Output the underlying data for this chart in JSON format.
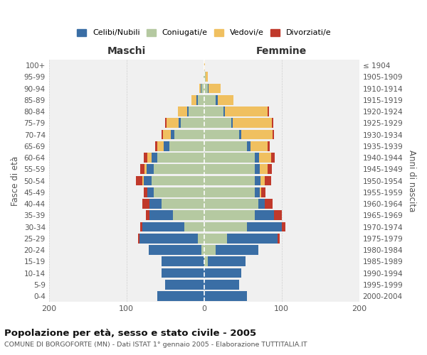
{
  "age_groups": [
    "0-4",
    "5-9",
    "10-14",
    "15-19",
    "20-24",
    "25-29",
    "30-34",
    "35-39",
    "40-44",
    "45-49",
    "50-54",
    "55-59",
    "60-64",
    "65-69",
    "70-74",
    "75-79",
    "80-84",
    "85-89",
    "90-94",
    "95-99",
    "100+"
  ],
  "birth_years": [
    "2000-2004",
    "1995-1999",
    "1990-1994",
    "1985-1989",
    "1980-1984",
    "1975-1979",
    "1970-1974",
    "1965-1969",
    "1960-1964",
    "1955-1959",
    "1950-1954",
    "1945-1949",
    "1940-1944",
    "1935-1939",
    "1930-1934",
    "1925-1929",
    "1920-1924",
    "1915-1919",
    "1910-1914",
    "1905-1909",
    "≤ 1904"
  ],
  "male_celibi": [
    60,
    50,
    55,
    55,
    68,
    75,
    55,
    30,
    15,
    8,
    10,
    9,
    8,
    7,
    5,
    3,
    2,
    2,
    1,
    0,
    0
  ],
  "male_coniugati": [
    0,
    0,
    0,
    0,
    3,
    8,
    25,
    40,
    55,
    65,
    68,
    65,
    60,
    45,
    38,
    30,
    20,
    8,
    3,
    1,
    0
  ],
  "male_vedovi": [
    0,
    0,
    0,
    0,
    0,
    0,
    0,
    0,
    0,
    0,
    2,
    3,
    5,
    8,
    10,
    15,
    12,
    6,
    2,
    0,
    0
  ],
  "male_divorziati": [
    0,
    0,
    0,
    0,
    0,
    2,
    2,
    5,
    10,
    5,
    8,
    5,
    5,
    3,
    2,
    2,
    0,
    0,
    0,
    0,
    0
  ],
  "female_celibi": [
    55,
    45,
    48,
    48,
    55,
    65,
    45,
    25,
    8,
    7,
    8,
    7,
    6,
    5,
    3,
    2,
    2,
    3,
    1,
    0,
    0
  ],
  "female_coniugati": [
    0,
    0,
    0,
    5,
    15,
    30,
    55,
    65,
    70,
    65,
    65,
    65,
    65,
    55,
    45,
    35,
    25,
    15,
    5,
    2,
    0
  ],
  "female_vedovi": [
    0,
    0,
    0,
    0,
    0,
    0,
    0,
    0,
    0,
    2,
    5,
    10,
    15,
    22,
    40,
    50,
    55,
    20,
    15,
    3,
    1
  ],
  "female_divorziati": [
    0,
    0,
    0,
    0,
    0,
    2,
    5,
    10,
    10,
    5,
    8,
    5,
    5,
    3,
    2,
    2,
    2,
    0,
    0,
    0,
    0
  ],
  "colors": {
    "celibi": "#3a6ea5",
    "coniugati": "#b5c9a1",
    "vedovi": "#f0c060",
    "divorziati": "#c0392b"
  },
  "title": "Popolazione per età, sesso e stato civile - 2005",
  "subtitle": "COMUNE DI BORGOFORTE (MN) - Dati ISTAT 1° gennaio 2005 - Elaborazione TUTTITALIA.IT",
  "xlabel_left": "Maschi",
  "xlabel_right": "Femmine",
  "ylabel_left": "Fasce di età",
  "ylabel_right": "Anni di nascita",
  "xlim": 200,
  "bg_color": "#f0f0f0",
  "grid_color": "#cccccc"
}
